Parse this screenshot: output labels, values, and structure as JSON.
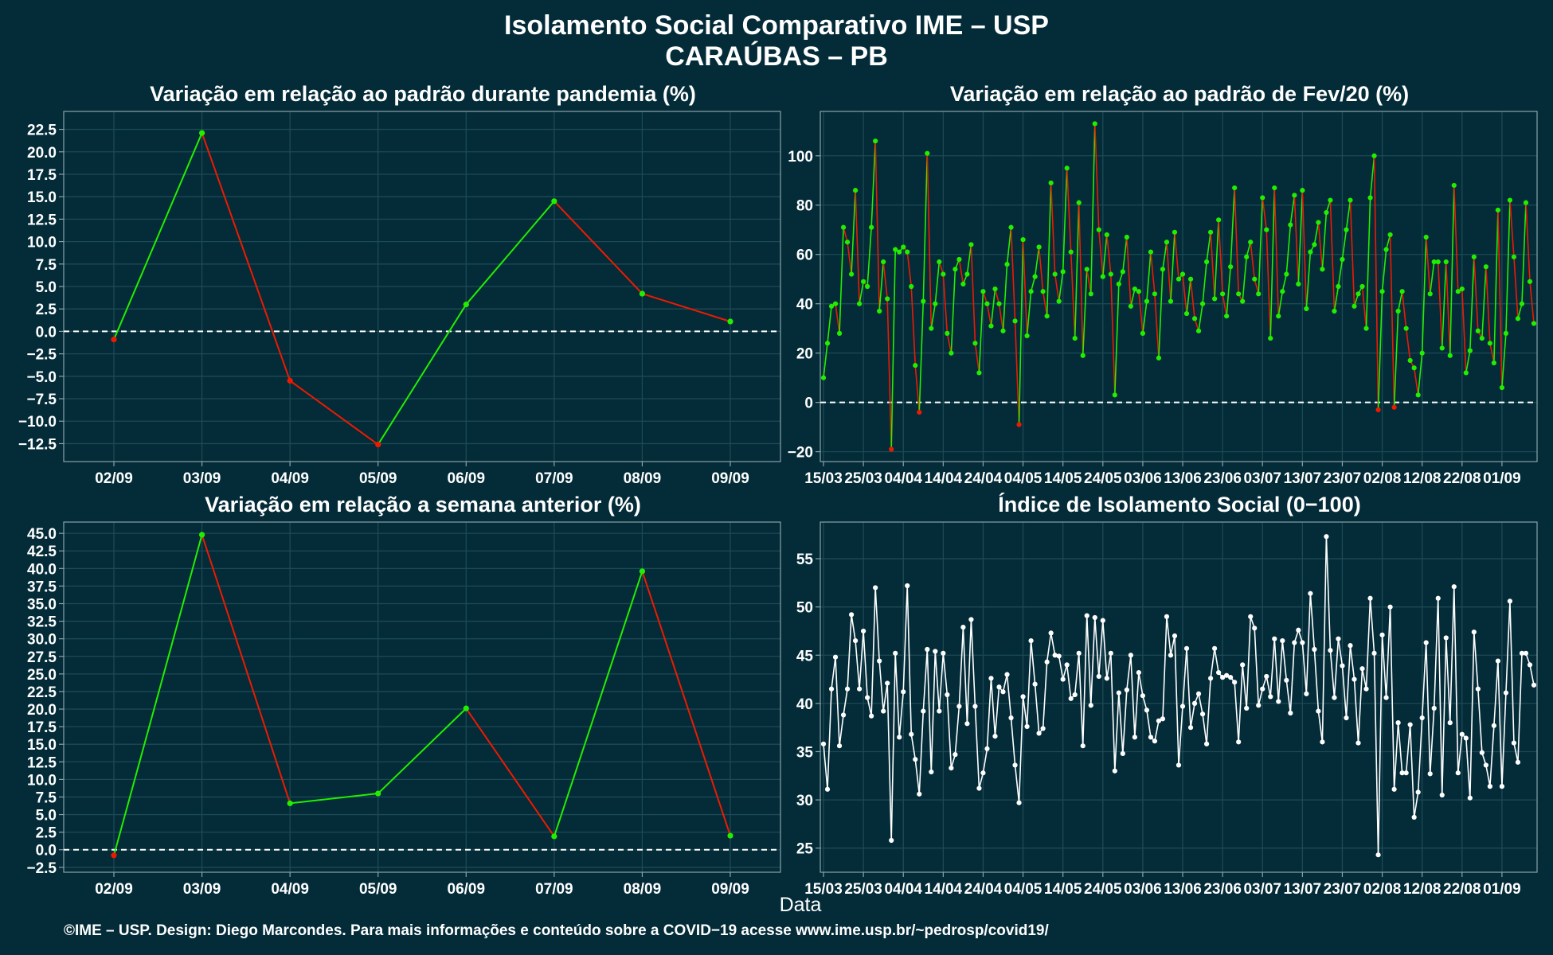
{
  "title": "Isolamento Social Comparativo IME – USP",
  "subtitle": "CARAÚBAS – PB",
  "xlabel": "Data",
  "footer": "©IME – USP. Design: Diego Marcondes. Para mais informações e conteúdo sobre a COVID−19 acesse www.ime.usp.br/~pedrosp/covid19/",
  "colors": {
    "background": "#032b38",
    "positive": "#22ee00",
    "negative": "#ee1a00",
    "index_line": "#ffffff",
    "zero_line": "#ffffff"
  },
  "chart_data": [
    {
      "id": "p1",
      "type": "line",
      "title": "Variação em relação ao padrão durante pandemia (%)",
      "categories": [
        "02/09",
        "03/09",
        "04/09",
        "05/09",
        "06/09",
        "07/09",
        "08/09",
        "09/09"
      ],
      "values": [
        -0.9,
        22.1,
        -5.5,
        -12.6,
        3.0,
        14.5,
        4.2,
        1.1
      ],
      "ylim": [
        -14.5,
        24.5
      ],
      "yticks": [
        -12.5,
        -10,
        -7.5,
        -5,
        -2.5,
        0,
        2.5,
        5,
        7.5,
        10,
        12.5,
        15,
        17.5,
        20,
        22.5
      ],
      "ytick_labels": [
        "−12.5",
        "−10.0",
        "−7.5",
        "−5.0",
        "−2.5",
        "0.0",
        "2.5",
        "5.0",
        "7.5",
        "10.0",
        "12.5",
        "15.0",
        "17.5",
        "20.0",
        "22.5"
      ],
      "zero_line": true,
      "color_by_sign": true,
      "grid": true
    },
    {
      "id": "p2",
      "type": "line",
      "title": "Variação em relação ao padrão de Fev/20 (%)",
      "x_ticks": [
        "15/03",
        "25/03",
        "04/04",
        "14/04",
        "24/04",
        "04/05",
        "14/05",
        "24/05",
        "03/06",
        "13/06",
        "23/06",
        "03/07",
        "13/07",
        "23/07",
        "02/08",
        "12/08",
        "22/08",
        "01/09"
      ],
      "values": [
        10,
        24,
        39,
        40,
        28,
        71,
        65,
        52,
        86,
        40,
        49,
        47,
        71,
        106,
        37,
        57,
        42,
        -19,
        62,
        61,
        63,
        61,
        47,
        15,
        -4,
        41,
        101,
        30,
        40,
        57,
        52,
        28,
        20,
        54,
        58,
        48,
        52,
        64,
        24,
        12,
        45,
        40,
        31,
        46,
        40,
        29,
        56,
        71,
        33,
        -9,
        66,
        27,
        45,
        51,
        63,
        45,
        35,
        89,
        52,
        41,
        53,
        95,
        61,
        26,
        81,
        19,
        54,
        44,
        113,
        70,
        51,
        68,
        52,
        3,
        48,
        53,
        67,
        39,
        46,
        45,
        28,
        41,
        61,
        44,
        18,
        54,
        65,
        41,
        69,
        50,
        52,
        36,
        50,
        34,
        29,
        40,
        57,
        69,
        42,
        74,
        44,
        35,
        55,
        87,
        44,
        41,
        59,
        65,
        50,
        44,
        83,
        70,
        26,
        87,
        35,
        45,
        52,
        72,
        84,
        48,
        86,
        38,
        61,
        64,
        73,
        54,
        77,
        82,
        37,
        47,
        58,
        70,
        82,
        39,
        44,
        47,
        30,
        83,
        100,
        -3,
        45,
        62,
        68,
        -2,
        37,
        45,
        30,
        17,
        14,
        3,
        20,
        67,
        44,
        57,
        57,
        22,
        57,
        19,
        88,
        45,
        46,
        12,
        21,
        59,
        29,
        26,
        55,
        24,
        16,
        78,
        6,
        28,
        82,
        59,
        34,
        40,
        81,
        49,
        32
      ],
      "ylim": [
        -24,
        118
      ],
      "yticks": [
        -20,
        0,
        20,
        40,
        60,
        80,
        100
      ],
      "ytick_labels": [
        "−20",
        "0",
        "20",
        "40",
        "60",
        "80",
        "100"
      ],
      "zero_line": true,
      "color_by_sign": true,
      "grid": true
    },
    {
      "id": "p3",
      "type": "line",
      "title": "Variação em relação a semana anterior (%)",
      "categories": [
        "02/09",
        "03/09",
        "04/09",
        "05/09",
        "06/09",
        "07/09",
        "08/09",
        "09/09"
      ],
      "values": [
        -0.8,
        44.8,
        6.6,
        8.0,
        20.1,
        1.9,
        39.6,
        2.0
      ],
      "ylim": [
        -3.2,
        46.6
      ],
      "yticks": [
        -2.5,
        0,
        2.5,
        5,
        7.5,
        10,
        12.5,
        15,
        17.5,
        20,
        22.5,
        25,
        27.5,
        30,
        32.5,
        35,
        37.5,
        40,
        42.5,
        45
      ],
      "ytick_labels": [
        "−2.5",
        "0.0",
        "2.5",
        "5.0",
        "7.5",
        "10.0",
        "12.5",
        "15.0",
        "17.5",
        "20.0",
        "22.5",
        "25.0",
        "27.5",
        "30.0",
        "32.5",
        "35.0",
        "37.5",
        "40.0",
        "42.5",
        "45.0"
      ],
      "zero_line": true,
      "color_by_sign": true,
      "grid": true
    },
    {
      "id": "p4",
      "type": "line",
      "title": "Índice de Isolamento Social (0−100)",
      "x_ticks": [
        "15/03",
        "25/03",
        "04/04",
        "14/04",
        "24/04",
        "04/05",
        "14/05",
        "24/05",
        "03/06",
        "13/06",
        "23/06",
        "03/07",
        "13/07",
        "23/07",
        "02/08",
        "12/08",
        "22/08",
        "01/09"
      ],
      "values": [
        35.8,
        31.1,
        41.5,
        44.8,
        35.6,
        38.8,
        41.5,
        49.2,
        46.5,
        41.5,
        47.5,
        40.6,
        38.7,
        52.0,
        44.4,
        39.2,
        42.1,
        25.8,
        45.2,
        36.5,
        41.2,
        52.2,
        36.8,
        34.2,
        30.6,
        39.2,
        45.6,
        32.9,
        45.4,
        39.2,
        45.2,
        40.9,
        33.3,
        34.7,
        39.7,
        47.9,
        37.9,
        48.7,
        39.7,
        31.2,
        32.8,
        35.3,
        42.6,
        36.6,
        41.7,
        41.2,
        43.0,
        38.5,
        33.6,
        29.7,
        40.7,
        37.6,
        46.5,
        42.0,
        36.9,
        37.4,
        44.3,
        47.3,
        45.0,
        44.9,
        42.5,
        44.0,
        40.5,
        40.9,
        45.2,
        35.6,
        49.1,
        39.8,
        48.9,
        42.8,
        48.6,
        42.6,
        45.2,
        33.0,
        41.1,
        34.8,
        41.4,
        45.0,
        36.5,
        43.2,
        40.8,
        39.3,
        36.5,
        36.1,
        38.2,
        38.4,
        49.0,
        45.0,
        47.0,
        33.6,
        39.7,
        45.7,
        37.5,
        40.0,
        41.0,
        38.9,
        35.8,
        42.6,
        45.7,
        43.2,
        42.7,
        42.9,
        42.7,
        42.2,
        36.0,
        44.0,
        39.5,
        49.0,
        47.8,
        39.8,
        41.5,
        42.8,
        40.7,
        46.7,
        40.2,
        46.5,
        42.4,
        39.0,
        46.3,
        47.6,
        46.3,
        41.0,
        51.4,
        45.6,
        39.2,
        36.0,
        57.3,
        45.5,
        40.6,
        46.7,
        43.9,
        38.5,
        46.0,
        42.5,
        35.9,
        43.6,
        41.5,
        50.9,
        45.2,
        24.3,
        47.1,
        40.6,
        50.0,
        31.1,
        38.0,
        32.8,
        32.8,
        37.8,
        28.2,
        30.8,
        38.5,
        46.3,
        32.7,
        39.5,
        50.9,
        30.5,
        46.8,
        38.0,
        52.1,
        32.8,
        36.8,
        36.4,
        30.2,
        47.4,
        41.5,
        34.9,
        33.6,
        31.4,
        37.7,
        44.4,
        31.4,
        41.1,
        50.6,
        35.9,
        33.9,
        45.2,
        45.2,
        44.0,
        41.9
      ],
      "ylim": [
        22.5,
        58.8
      ],
      "yticks": [
        25,
        30,
        35,
        40,
        45,
        50,
        55
      ],
      "ytick_labels": [
        "25",
        "30",
        "35",
        "40",
        "45",
        "50",
        "55"
      ],
      "zero_line": false,
      "color_by_sign": false,
      "grid": true
    }
  ]
}
